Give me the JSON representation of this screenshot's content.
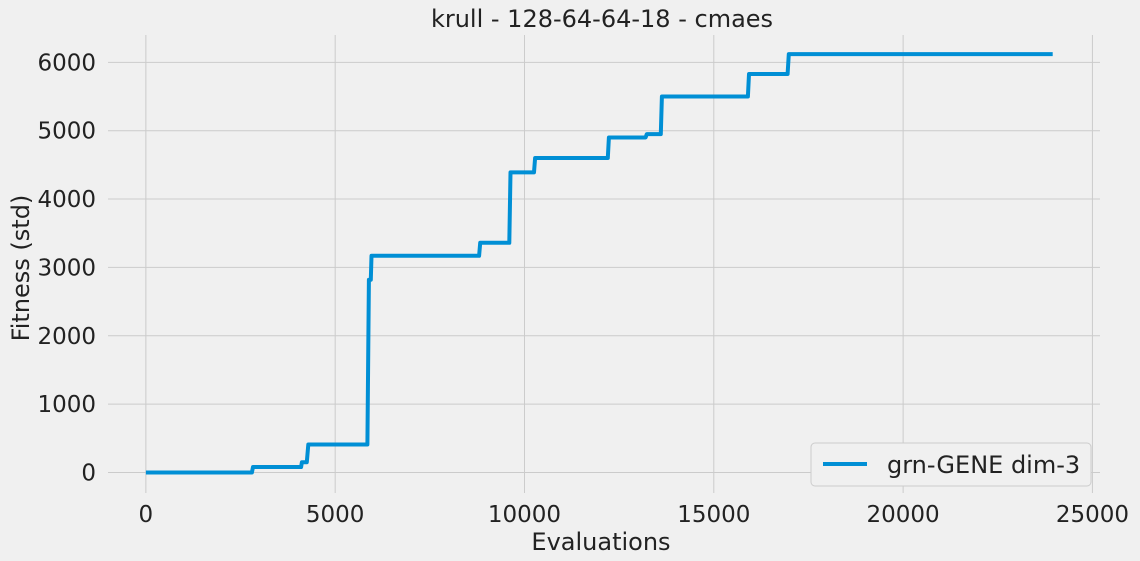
{
  "chart_data": {
    "type": "line",
    "title": "krull - 128-64-64-18 - cmaes",
    "xlabel": "Evaluations",
    "ylabel": "Fitness (std)",
    "xlim": [
      -1000,
      25200
    ],
    "ylim": [
      -300,
      6400
    ],
    "xticks": [
      0,
      5000,
      10000,
      15000,
      20000,
      25000
    ],
    "yticks": [
      0,
      1000,
      2000,
      3000,
      4000,
      5000,
      6000
    ],
    "grid": true,
    "legend_position": "bottom-right",
    "series": [
      {
        "name": "grn-GENE dim-3",
        "color": "#008fd5",
        "x": [
          0,
          2800,
          2830,
          4100,
          4120,
          4250,
          4290,
          5850,
          5890,
          5940,
          5960,
          8800,
          8830,
          9600,
          9630,
          10250,
          10280,
          12200,
          12230,
          13200,
          13230,
          13600,
          13630,
          15900,
          15930,
          16950,
          16980,
          23950
        ],
        "y": [
          0,
          0,
          80,
          80,
          150,
          150,
          410,
          410,
          2820,
          2820,
          3170,
          3170,
          3360,
          3360,
          4390,
          4390,
          4600,
          4600,
          4900,
          4900,
          4950,
          4950,
          5500,
          5500,
          5830,
          5830,
          6120,
          6120
        ]
      }
    ]
  }
}
